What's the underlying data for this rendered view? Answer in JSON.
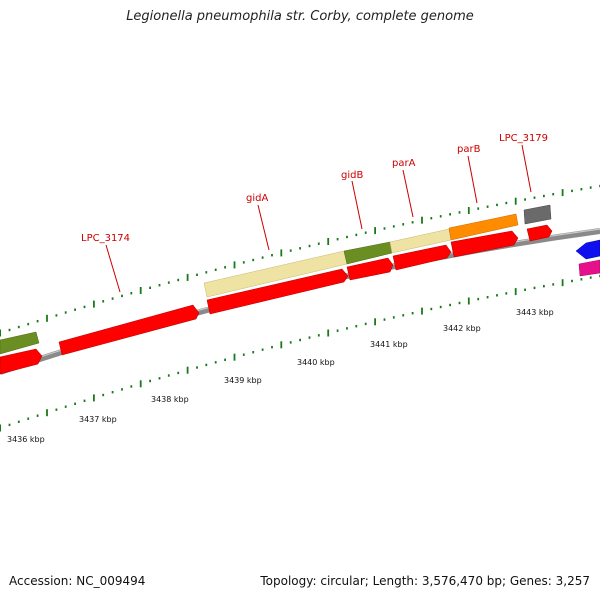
{
  "title": "Legionella pneumophila str. Corby, complete genome",
  "footer": {
    "accession": "Accession: NC_009494",
    "summary": "Topology: circular; Length: 3,576,470 bp; Genes: 3,257"
  },
  "colors": {
    "background": "#ffffff",
    "backbone": "#8a8a8a",
    "forward_gene": "#e8d98a",
    "reverse_cds": "#ff0000",
    "gid_highlight": "#6b8e23",
    "parB_highlight": "#ff8c00",
    "misc_gray": "#707070",
    "blue_feature": "#1010ee",
    "pink_feature": "#e8108a",
    "tick": "#1a7a1a",
    "gene_label": "#cc0000"
  },
  "genes": [
    {
      "id": "lpc3174",
      "label": "LPC_3174"
    },
    {
      "id": "gidA",
      "label": "gidA"
    },
    {
      "id": "gidB",
      "label": "gidB"
    },
    {
      "id": "parA",
      "label": "parA"
    },
    {
      "id": "parB",
      "label": "parB"
    },
    {
      "id": "lpc3179",
      "label": "LPC_3179"
    }
  ],
  "scale_labels": [
    {
      "id": "s3436",
      "text": "3436 kbp"
    },
    {
      "id": "s3437",
      "text": "3437 kbp"
    },
    {
      "id": "s3438",
      "text": "3438 kbp"
    },
    {
      "id": "s3439",
      "text": "3439 kbp"
    },
    {
      "id": "s3440",
      "text": "3440 kbp"
    },
    {
      "id": "s3441",
      "text": "3441 kbp"
    },
    {
      "id": "s3442",
      "text": "3442 kbp"
    },
    {
      "id": "s3443",
      "text": "3443 kbp"
    }
  ]
}
